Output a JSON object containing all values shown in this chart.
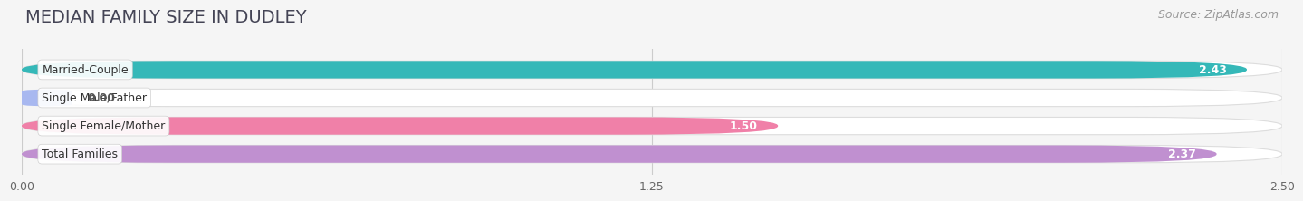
{
  "title": "MEDIAN FAMILY SIZE IN DUDLEY",
  "source": "Source: ZipAtlas.com",
  "categories": [
    "Married-Couple",
    "Single Male/Father",
    "Single Female/Mother",
    "Total Families"
  ],
  "values": [
    2.43,
    0.0,
    1.5,
    2.37
  ],
  "bar_colors": [
    "#35b8b8",
    "#a8b8f0",
    "#f080a8",
    "#c090d0"
  ],
  "xlim": [
    0,
    2.5
  ],
  "xticks": [
    0.0,
    1.25,
    2.5
  ],
  "xtick_labels": [
    "0.00",
    "1.25",
    "2.50"
  ],
  "title_fontsize": 14,
  "source_fontsize": 9,
  "label_fontsize": 9,
  "value_fontsize": 9,
  "bar_height": 0.62,
  "background_color": "#f5f5f5"
}
